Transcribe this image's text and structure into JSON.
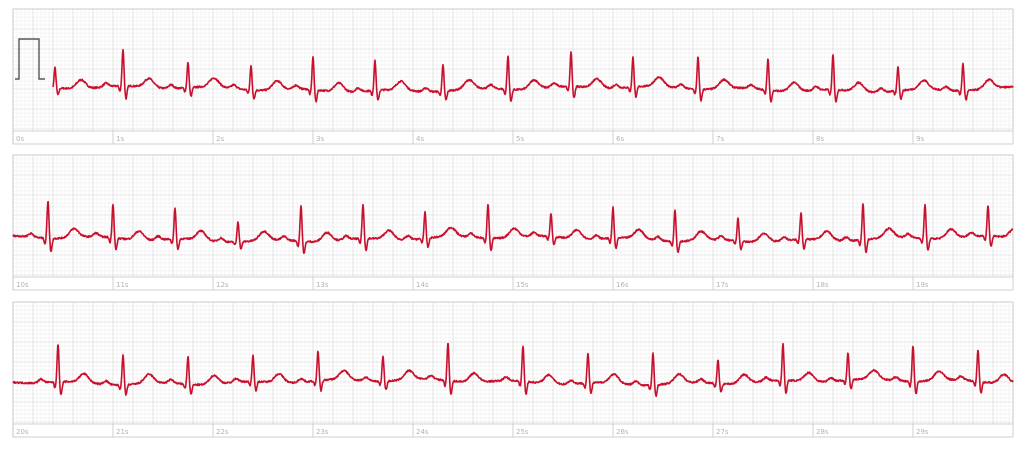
{
  "chart_data": {
    "type": "line",
    "title": "",
    "xlabel": "",
    "ylabel": "",
    "x_unit": "s",
    "strip_seconds": 10,
    "grid": true,
    "colors": {
      "trace": "#c8102e",
      "calibration": "#555555",
      "grid_minor": "#ececec",
      "grid_major": "#d2d2d2",
      "strip_border": "#c4c4c4",
      "label": "#b4b4b4"
    },
    "calibration_pulse": {
      "amplitude_mV": 1.0,
      "duration_s": 0.2
    },
    "strips": [
      {
        "xlim": [
          0,
          10
        ],
        "tick_labels": [
          "0s",
          "1s",
          "2s",
          "3s",
          "4s",
          "5s",
          "6s",
          "7s",
          "8s",
          "9s"
        ],
        "r_peaks_s": [
          0.42,
          1.1,
          1.75,
          2.38,
          3.0,
          3.62,
          4.3,
          4.95,
          5.58,
          6.2,
          6.85,
          7.55,
          8.2,
          8.85,
          9.5
        ]
      },
      {
        "xlim": [
          10,
          20
        ],
        "tick_labels": [
          "10s",
          "11s",
          "12s",
          "13s",
          "14s",
          "15s",
          "16s",
          "17s",
          "18s",
          "19s"
        ],
        "r_peaks_s": [
          10.35,
          11.0,
          11.62,
          12.25,
          12.88,
          13.5,
          14.12,
          14.75,
          15.38,
          16.0,
          16.62,
          17.25,
          17.88,
          18.5,
          19.12,
          19.75
        ]
      },
      {
        "xlim": [
          20,
          30
        ],
        "tick_labels": [
          "20s",
          "21s",
          "22s",
          "23s",
          "24s",
          "25s",
          "26s",
          "27s",
          "28s",
          "29s"
        ],
        "r_peaks_s": [
          20.45,
          21.1,
          21.75,
          22.4,
          23.05,
          23.7,
          24.35,
          25.1,
          25.75,
          26.4,
          27.05,
          27.7,
          28.35,
          29.0,
          29.65
        ]
      }
    ]
  }
}
